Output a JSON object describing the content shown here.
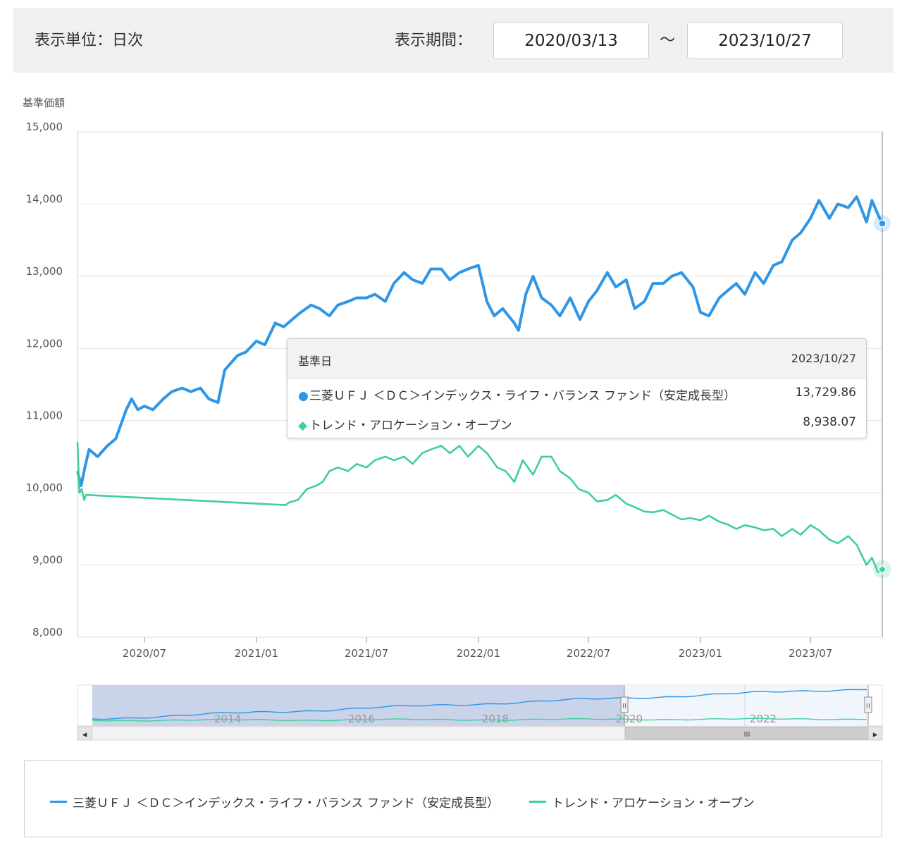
{
  "toolbar": {
    "unit_label": "表示単位：日次",
    "period_label": "表示期間：",
    "start_date": "2020/03/13",
    "separator": "～",
    "end_date": "2023/10/27"
  },
  "tooltip": {
    "header_label": "基準日",
    "header_date": "2023/10/27",
    "rows": [
      {
        "marker": "●",
        "name": "三菱ＵＦＪ ＜ＤＣ＞インデックス・ライフ・バランス ファンド（安定成長型）",
        "value": "13,729.86"
      },
      {
        "marker": "◆",
        "name": "トレンド・アロケーション・オープン",
        "value": "8,938.07"
      }
    ]
  },
  "navigator": {
    "labels": [
      "2014",
      "2016",
      "2018",
      "2020",
      "2022"
    ],
    "scroll_left": "◂",
    "scroll_right": "▸",
    "scroll_grip": "III",
    "handle_grip": "II"
  },
  "legend": [
    {
      "name": "三菱ＵＦＪ ＜ＤＣ＞インデックス・ライフ・バランス ファンド（安定成長型）",
      "color": "#2f96e6"
    },
    {
      "name": "トレンド・アロケーション・オープン",
      "color": "#3fcf9a"
    }
  ],
  "chart_data": {
    "type": "line",
    "ylabel": "基準価額",
    "ylim": [
      8000,
      15000
    ],
    "yticks": [
      "15,000",
      "14,000",
      "13,000",
      "12,000",
      "11,000",
      "10,000",
      "9,000",
      "8,000"
    ],
    "xticks": [
      "2020/07",
      "2021/01",
      "2021/07",
      "2022/01",
      "2022/07",
      "2023/01",
      "2023/07"
    ],
    "xlim": [
      "2020-03-13",
      "2023-10-27"
    ],
    "grid": true,
    "series": [
      {
        "name": "三菱ＵＦＪ ＜ＤＣ＞インデックス・ライフ・バランス ファンド（安定成長型）",
        "color": "#2f96e6",
        "x": [
          "2020-03-13",
          "2020-03-19",
          "2020-03-25",
          "2020-04-01",
          "2020-04-15",
          "2020-05-01",
          "2020-05-15",
          "2020-06-01",
          "2020-06-10",
          "2020-06-20",
          "2020-07-01",
          "2020-07-15",
          "2020-08-01",
          "2020-08-15",
          "2020-09-01",
          "2020-09-15",
          "2020-10-01",
          "2020-10-15",
          "2020-10-30",
          "2020-11-10",
          "2020-12-01",
          "2020-12-15",
          "2021-01-01",
          "2021-01-15",
          "2021-02-01",
          "2021-02-15",
          "2021-03-01",
          "2021-03-15",
          "2021-04-01",
          "2021-04-15",
          "2021-05-01",
          "2021-05-15",
          "2021-06-01",
          "2021-06-15",
          "2021-07-01",
          "2021-07-15",
          "2021-08-01",
          "2021-08-15",
          "2021-09-01",
          "2021-09-15",
          "2021-10-01",
          "2021-10-15",
          "2021-11-01",
          "2021-11-15",
          "2021-12-01",
          "2021-12-15",
          "2022-01-01",
          "2022-01-15",
          "2022-01-27",
          "2022-02-10",
          "2022-03-01",
          "2022-03-08",
          "2022-03-20",
          "2022-04-01",
          "2022-04-15",
          "2022-05-01",
          "2022-05-15",
          "2022-06-01",
          "2022-06-17",
          "2022-07-01",
          "2022-07-15",
          "2022-08-01",
          "2022-08-15",
          "2022-09-01",
          "2022-09-15",
          "2022-10-01",
          "2022-10-15",
          "2022-11-01",
          "2022-11-15",
          "2022-12-01",
          "2022-12-20",
          "2023-01-01",
          "2023-01-15",
          "2023-02-01",
          "2023-02-15",
          "2023-03-01",
          "2023-03-15",
          "2023-04-01",
          "2023-04-15",
          "2023-05-01",
          "2023-05-15",
          "2023-06-01",
          "2023-06-15",
          "2023-07-01",
          "2023-07-15",
          "2023-08-01",
          "2023-08-15",
          "2023-09-01",
          "2023-09-15",
          "2023-10-01",
          "2023-10-10",
          "2023-10-20",
          "2023-10-27"
        ],
        "y": [
          10300,
          10100,
          10350,
          10600,
          10500,
          10650,
          10750,
          11150,
          11300,
          11150,
          11200,
          11150,
          11300,
          11400,
          11450,
          11400,
          11450,
          11300,
          11250,
          11700,
          11900,
          11950,
          12100,
          12050,
          12350,
          12300,
          12400,
          12500,
          12600,
          12550,
          12450,
          12600,
          12650,
          12700,
          12700,
          12750,
          12650,
          12900,
          13050,
          12950,
          12900,
          13100,
          13100,
          12950,
          13050,
          13100,
          13150,
          12650,
          12450,
          12550,
          12350,
          12250,
          12750,
          13000,
          12700,
          12600,
          12450,
          12700,
          12400,
          12650,
          12800,
          13050,
          12850,
          12950,
          12550,
          12650,
          12900,
          12900,
          13000,
          13050,
          12850,
          12500,
          12450,
          12700,
          12800,
          12900,
          12750,
          13050,
          12900,
          13150,
          13200,
          13500,
          13600,
          13800,
          14050,
          13800,
          14000,
          13950,
          14100,
          13750,
          14050,
          13850,
          13729.86
        ]
      },
      {
        "name": "トレンド・アロケーション・オープン",
        "color": "#3fcf9a",
        "x": [
          "2020-03-13",
          "2020-03-16",
          "2020-03-20",
          "2020-03-24",
          "2020-03-27",
          "2021-02-18",
          "2021-02-25",
          "2021-03-10",
          "2021-03-25",
          "2021-04-10",
          "2021-04-20",
          "2021-05-01",
          "2021-05-15",
          "2021-06-01",
          "2021-06-15",
          "2021-07-01",
          "2021-07-15",
          "2021-08-01",
          "2021-08-15",
          "2021-09-01",
          "2021-09-15",
          "2021-10-01",
          "2021-10-15",
          "2021-11-01",
          "2021-11-15",
          "2021-12-01",
          "2021-12-15",
          "2022-01-01",
          "2022-01-15",
          "2022-02-01",
          "2022-02-15",
          "2022-03-01",
          "2022-03-15",
          "2022-04-01",
          "2022-04-15",
          "2022-05-01",
          "2022-05-15",
          "2022-06-01",
          "2022-06-15",
          "2022-07-01",
          "2022-07-15",
          "2022-08-01",
          "2022-08-15",
          "2022-09-01",
          "2022-09-15",
          "2022-10-01",
          "2022-10-15",
          "2022-11-01",
          "2022-11-15",
          "2022-12-01",
          "2022-12-15",
          "2023-01-01",
          "2023-01-15",
          "2023-02-01",
          "2023-02-15",
          "2023-03-01",
          "2023-03-15",
          "2023-04-01",
          "2023-04-15",
          "2023-05-01",
          "2023-05-15",
          "2023-06-01",
          "2023-06-15",
          "2023-07-01",
          "2023-07-15",
          "2023-08-01",
          "2023-08-15",
          "2023-09-01",
          "2023-09-15",
          "2023-10-01",
          "2023-10-10",
          "2023-10-20",
          "2023-10-27"
        ],
        "y": [
          10700,
          10000,
          10050,
          9900,
          9970,
          9830,
          9870,
          9900,
          10050,
          10100,
          10150,
          10300,
          10350,
          10300,
          10400,
          10350,
          10450,
          10500,
          10450,
          10500,
          10400,
          10550,
          10600,
          10650,
          10550,
          10650,
          10500,
          10650,
          10550,
          10350,
          10300,
          10150,
          10450,
          10250,
          10500,
          10500,
          10300,
          10200,
          10050,
          10000,
          9880,
          9900,
          9970,
          9850,
          9800,
          9740,
          9730,
          9760,
          9700,
          9630,
          9650,
          9620,
          9680,
          9600,
          9560,
          9500,
          9550,
          9520,
          9480,
          9500,
          9400,
          9500,
          9420,
          9550,
          9480,
          9350,
          9300,
          9400,
          9280,
          9000,
          9100,
          8900,
          8938.07
        ]
      }
    ]
  }
}
